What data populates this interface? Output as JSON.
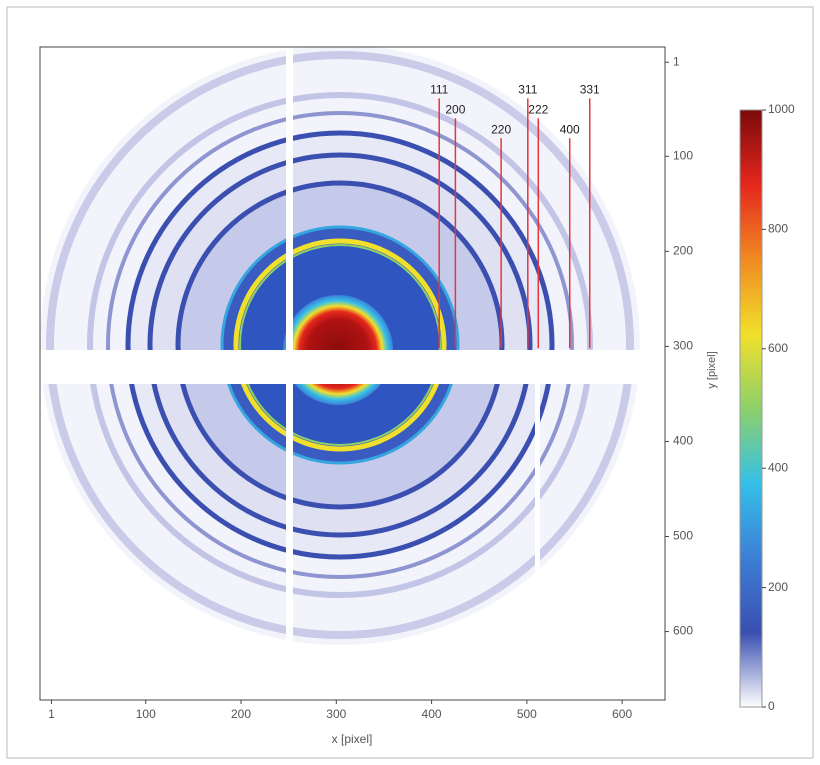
{
  "chart_data": {
    "type": "image",
    "x_label": "x [pixel]",
    "y_label": "y [pixel]",
    "xlim": [
      -11,
      645
    ],
    "ylim": [
      -15,
      672
    ],
    "xticks": [
      1,
      100,
      200,
      300,
      400,
      500,
      600
    ],
    "yticks": [
      1,
      100,
      200,
      300,
      400,
      500,
      600
    ],
    "y_inverted": true,
    "line_color": "#e8343a",
    "reflections": [
      {
        "label": "111",
        "x": 408,
        "y_top": 39,
        "y_bottom": 302
      },
      {
        "label": "200",
        "x": 425,
        "y_top": 60,
        "y_bottom": 302
      },
      {
        "label": "220",
        "x": 473,
        "y_top": 81,
        "y_bottom": 302
      },
      {
        "label": "311",
        "x": 501,
        "y_top": 39,
        "y_bottom": 302
      },
      {
        "label": "222",
        "x": 512,
        "y_top": 60,
        "y_bottom": 302
      },
      {
        "label": "400",
        "x": 545,
        "y_top": 81,
        "y_bottom": 302
      },
      {
        "label": "331",
        "x": 566,
        "y_top": 39,
        "y_bottom": 302
      }
    ],
    "colorbar": {
      "lim": [
        0,
        1000
      ],
      "ticks": [
        0,
        200,
        400,
        600,
        800,
        1000
      ],
      "colors": [
        "#ffffff",
        "#3a4fb0",
        "#3d7fd6",
        "#35c0e8",
        "#8ed06a",
        "#f1e02b",
        "#f08a22",
        "#e5271e",
        "#7a0a0a"
      ]
    }
  }
}
